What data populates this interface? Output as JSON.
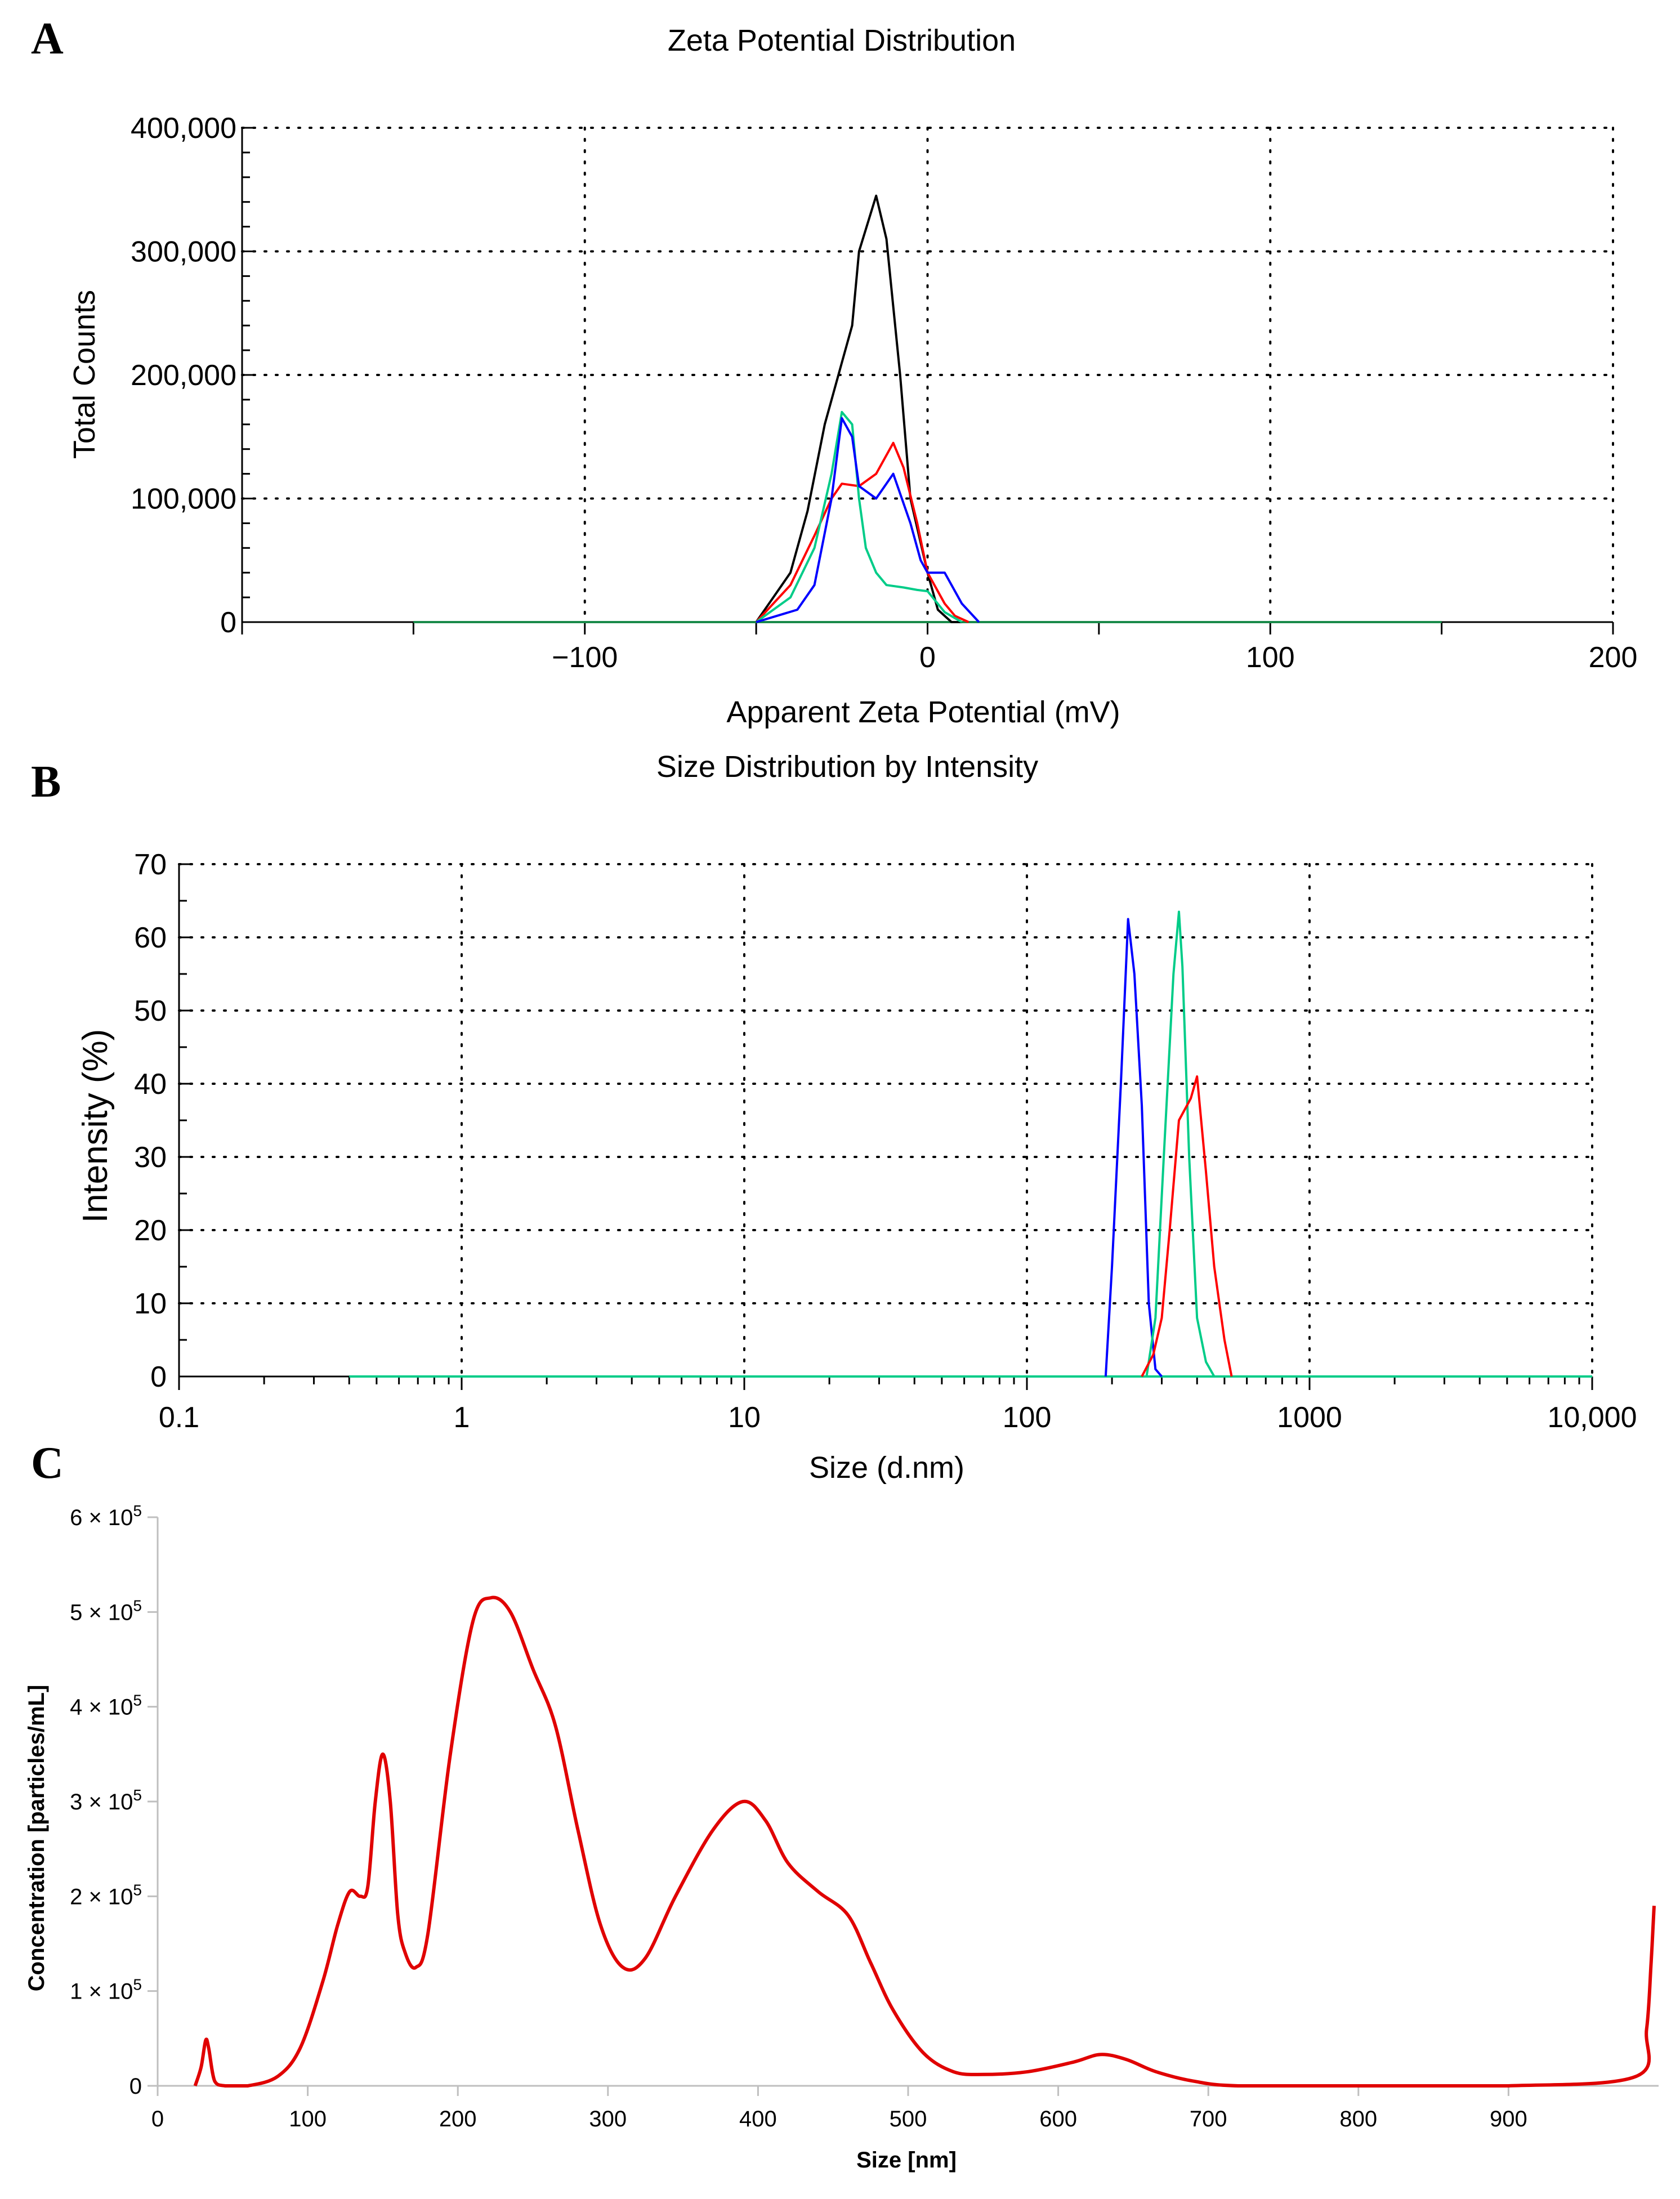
{
  "chart_data": [
    {
      "panel": "A",
      "type": "line",
      "title": "Zeta Potential Distribution",
      "xlabel": "Apparent Zeta Potential (mV)",
      "ylabel": "Total Counts",
      "xlim": [
        -200,
        200
      ],
      "ylim": [
        0,
        400000
      ],
      "xticks": [
        -100,
        0,
        100,
        200
      ],
      "xtick_labels": [
        "−100",
        "0",
        "100",
        "200"
      ],
      "yticks": [
        0,
        100000,
        200000,
        300000,
        400000
      ],
      "ytick_labels": [
        "0",
        "100,000",
        "200,000",
        "300,000",
        "400,000"
      ],
      "grid": true,
      "baseline": {
        "color": "#1a8a4a",
        "x": [
          -150,
          150
        ],
        "y": [
          0,
          0
        ]
      },
      "series": [
        {
          "name": "black",
          "color": "#000000",
          "x": [
            -50,
            -40,
            -35,
            -30,
            -25,
            -22,
            -20,
            -15,
            -12,
            -8,
            -5,
            0,
            3,
            7,
            10
          ],
          "y": [
            0,
            40000,
            90000,
            160000,
            210000,
            240000,
            300000,
            345000,
            310000,
            200000,
            100000,
            40000,
            10000,
            0,
            0
          ]
        },
        {
          "name": "red",
          "color": "#ff0000",
          "x": [
            -50,
            -40,
            -33,
            -28,
            -25,
            -20,
            -15,
            -10,
            -7,
            -3,
            0,
            5,
            8,
            12
          ],
          "y": [
            0,
            30000,
            70000,
            100000,
            112000,
            110000,
            120000,
            145000,
            125000,
            80000,
            40000,
            15000,
            5000,
            0
          ]
        },
        {
          "name": "green",
          "color": "#00cc88",
          "x": [
            -50,
            -40,
            -33,
            -28,
            -25,
            -22,
            -20,
            -18,
            -15,
            -12,
            -7,
            -3,
            0,
            5,
            10
          ],
          "y": [
            0,
            20000,
            60000,
            120000,
            170000,
            160000,
            100000,
            60000,
            40000,
            30000,
            28000,
            26000,
            25000,
            8000,
            0
          ]
        },
        {
          "name": "blue",
          "color": "#0000ff",
          "x": [
            -50,
            -38,
            -33,
            -28,
            -25,
            -22,
            -20,
            -15,
            -10,
            -5,
            -2,
            0,
            5,
            10,
            15
          ],
          "y": [
            0,
            10000,
            30000,
            100000,
            165000,
            150000,
            110000,
            100000,
            120000,
            80000,
            50000,
            40000,
            40000,
            15000,
            0
          ]
        }
      ]
    },
    {
      "panel": "B",
      "type": "line",
      "scale_x": "log",
      "title": "Size Distribution by Intensity",
      "xlabel": "Size (d.nm)",
      "ylabel": "Intensity (%)",
      "xlim": [
        0.1,
        10000
      ],
      "ylim": [
        0,
        70
      ],
      "xticks": [
        0.1,
        1,
        10,
        100,
        1000,
        10000
      ],
      "xtick_labels": [
        "0.1",
        "1",
        "10",
        "100",
        "1000",
        "10,000"
      ],
      "yticks": [
        0,
        10,
        20,
        30,
        40,
        50,
        60,
        70
      ],
      "ytick_labels": [
        "0",
        "10",
        "20",
        "30",
        "40",
        "50",
        "60",
        "70"
      ],
      "grid": true,
      "baseline": {
        "color": "#00cc88",
        "x": [
          0.4,
          10000
        ],
        "y": [
          0,
          0
        ]
      },
      "series": [
        {
          "name": "blue",
          "color": "#0000ff",
          "x": [
            190,
            200,
            215,
            228,
            240,
            255,
            270,
            285,
            300
          ],
          "y": [
            0,
            15,
            40,
            62.5,
            55,
            37,
            10,
            1,
            0
          ]
        },
        {
          "name": "green",
          "color": "#00cc88",
          "x": [
            265,
            285,
            305,
            330,
            345,
            355,
            375,
            400,
            430,
            460
          ],
          "y": [
            0,
            8,
            30,
            55,
            63.5,
            56,
            30,
            8,
            2,
            0
          ]
        },
        {
          "name": "red",
          "color": "#ff0000",
          "x": [
            255,
            280,
            300,
            320,
            345,
            380,
            400,
            430,
            460,
            500,
            530
          ],
          "y": [
            0,
            3,
            8,
            20,
            35,
            38,
            41,
            28,
            15,
            5,
            0
          ]
        }
      ]
    },
    {
      "panel": "C",
      "type": "line",
      "xlabel": "Size [nm]",
      "ylabel": "Concentration [particles/mL]",
      "xlim": [
        0,
        1000
      ],
      "ylim": [
        0,
        600000
      ],
      "xticks": [
        0,
        100,
        200,
        300,
        400,
        500,
        600,
        700,
        800,
        900
      ],
      "xtick_labels": [
        "0",
        "100",
        "200",
        "300",
        "400",
        "500",
        "600",
        "700",
        "800",
        "900"
      ],
      "yticks": [
        0,
        100000,
        200000,
        300000,
        400000,
        500000,
        600000
      ],
      "ytick_labels": [
        "0",
        "1 × 10",
        "2 × 10",
        "3 × 10",
        "4 × 10",
        "5 × 10",
        "6 × 10"
      ],
      "ytick_exponent": "5",
      "grid": false,
      "series": [
        {
          "name": "red",
          "color": "#e00000",
          "x": [
            25,
            29,
            32,
            34,
            38,
            45,
            60,
            80,
            95,
            110,
            120,
            128,
            135,
            140,
            145,
            150,
            155,
            160,
            165,
            172,
            180,
            195,
            210,
            222,
            235,
            250,
            265,
            280,
            295,
            310,
            325,
            345,
            370,
            390,
            405,
            420,
            440,
            460,
            475,
            490,
            510,
            530,
            550,
            580,
            610,
            628,
            645,
            665,
            690,
            720,
            800,
            900,
            985,
            992,
            995,
            997
          ],
          "y": [
            0,
            20000,
            48000,
            40000,
            5000,
            0,
            0,
            10000,
            40000,
            110000,
            170000,
            205000,
            200000,
            210000,
            300000,
            350000,
            300000,
            180000,
            140000,
            125000,
            160000,
            350000,
            490000,
            515000,
            500000,
            440000,
            380000,
            270000,
            170000,
            125000,
            135000,
            200000,
            270000,
            300000,
            280000,
            235000,
            205000,
            180000,
            130000,
            80000,
            35000,
            15000,
            12000,
            15000,
            25000,
            33000,
            28000,
            15000,
            5000,
            0,
            0,
            0,
            10000,
            60000,
            130000,
            190000
          ]
        }
      ]
    }
  ],
  "panel_labels": [
    "A",
    "B",
    "C"
  ]
}
